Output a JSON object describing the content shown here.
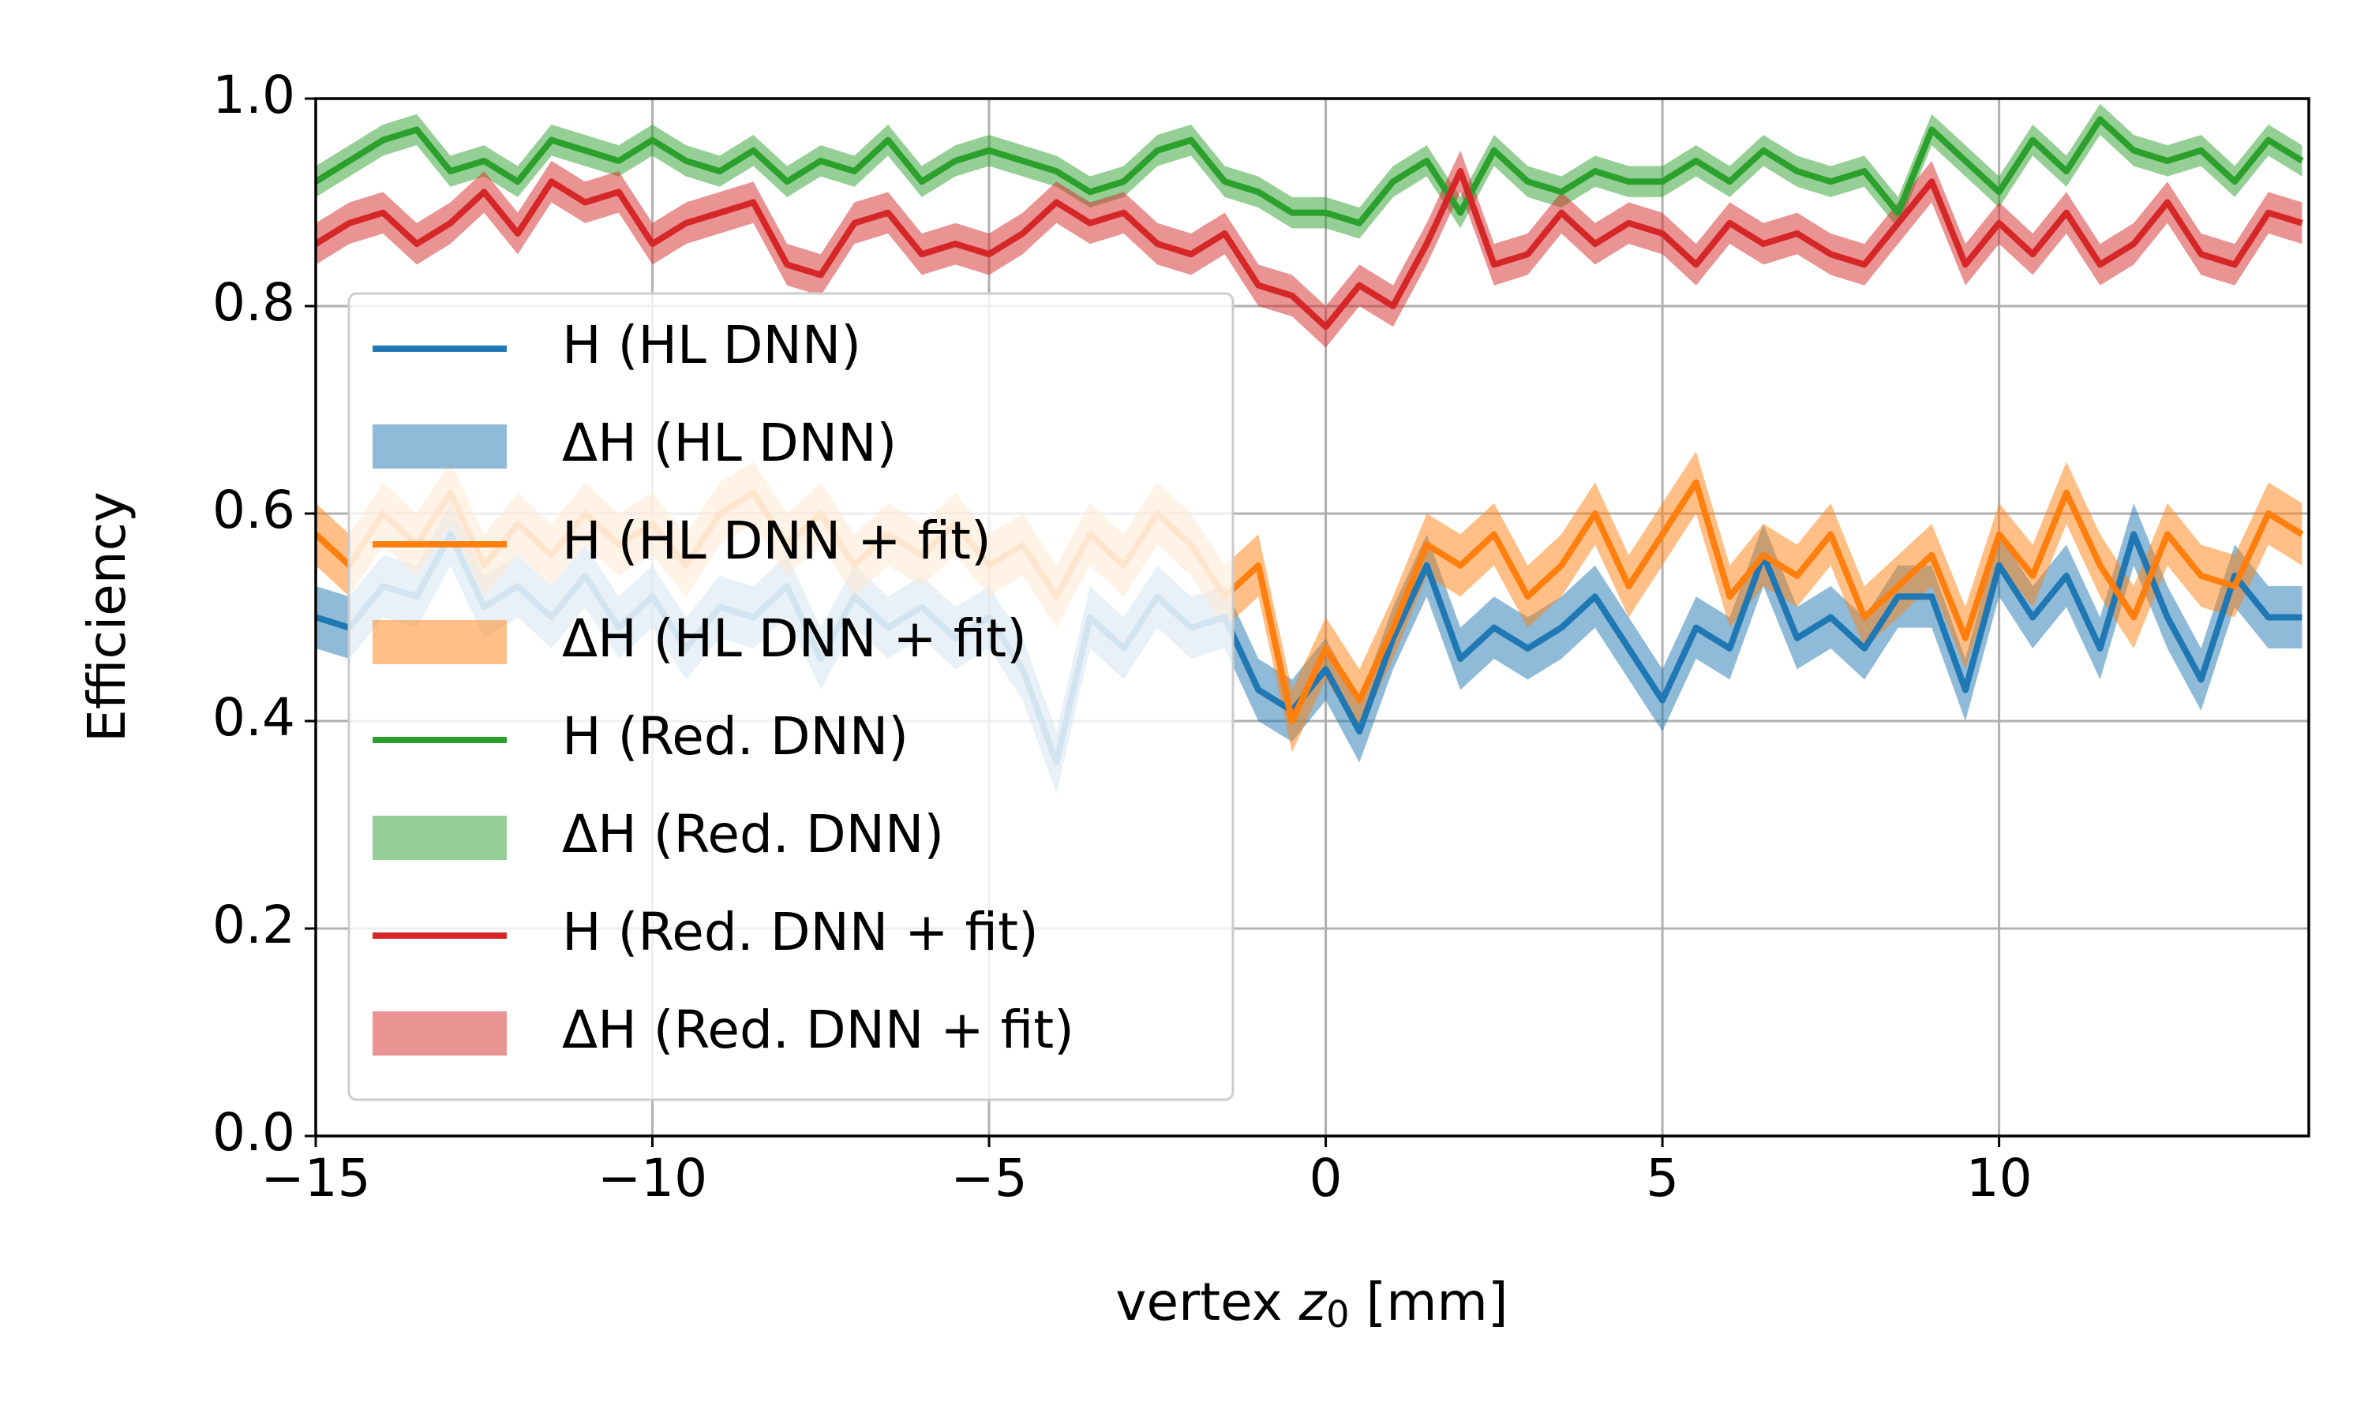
{
  "chart_data": {
    "type": "line",
    "ylabel": "Efficiency",
    "xlabel": {
      "prefix": "vertex ",
      "var": "z",
      "sub": "0",
      "suffix": " [mm]"
    },
    "x": [
      -15,
      -14.5,
      -14,
      -13.5,
      -13,
      -12.5,
      -12,
      -11.5,
      -11,
      -10.5,
      -10,
      -9.5,
      -9,
      -8.5,
      -8,
      -7.5,
      -7,
      -6.5,
      -6,
      -5.5,
      -5,
      -4.5,
      -4,
      -3.5,
      -3,
      -2.5,
      -2,
      -1.5,
      -1,
      -0.5,
      0,
      0.5,
      1,
      1.5,
      2,
      2.5,
      3,
      3.5,
      4,
      4.5,
      5,
      5.5,
      6,
      6.5,
      7,
      7.5,
      8,
      8.5,
      9,
      9.5,
      10,
      10.5,
      11,
      11.5,
      12,
      12.5,
      13,
      13.5,
      14,
      14.5
    ],
    "series": [
      {
        "name": "H (HL DNN)",
        "color": "#1f77b4",
        "band": {
          "name": "ΔH (HL DNN)",
          "error": 0.03
        },
        "values": [
          0.5,
          0.49,
          0.53,
          0.52,
          0.58,
          0.51,
          0.53,
          0.5,
          0.54,
          0.49,
          0.52,
          0.47,
          0.51,
          0.5,
          0.53,
          0.46,
          0.52,
          0.49,
          0.51,
          0.48,
          0.5,
          0.45,
          0.36,
          0.5,
          0.47,
          0.52,
          0.49,
          0.5,
          0.43,
          0.41,
          0.45,
          0.39,
          0.48,
          0.55,
          0.46,
          0.49,
          0.47,
          0.49,
          0.52,
          0.47,
          0.42,
          0.49,
          0.47,
          0.56,
          0.48,
          0.5,
          0.47,
          0.52,
          0.52,
          0.43,
          0.55,
          0.5,
          0.54,
          0.47,
          0.58,
          0.5,
          0.44,
          0.54,
          0.5,
          0.5
        ]
      },
      {
        "name": "H (HL DNN + fit)",
        "color": "#ff7f0e",
        "band": {
          "name": "ΔH (HL DNN + fit)",
          "error": 0.03
        },
        "values": [
          0.58,
          0.55,
          0.6,
          0.57,
          0.62,
          0.55,
          0.59,
          0.56,
          0.6,
          0.57,
          0.59,
          0.55,
          0.6,
          0.62,
          0.57,
          0.6,
          0.55,
          0.58,
          0.56,
          0.59,
          0.55,
          0.57,
          0.52,
          0.58,
          0.55,
          0.6,
          0.57,
          0.52,
          0.55,
          0.4,
          0.47,
          0.42,
          0.49,
          0.57,
          0.55,
          0.58,
          0.52,
          0.55,
          0.6,
          0.53,
          0.58,
          0.63,
          0.52,
          0.56,
          0.54,
          0.58,
          0.5,
          0.53,
          0.56,
          0.48,
          0.58,
          0.54,
          0.62,
          0.55,
          0.5,
          0.58,
          0.54,
          0.53,
          0.6,
          0.58
        ]
      },
      {
        "name": "H (Red. DNN)",
        "color": "#2ca02c",
        "band": {
          "name": "ΔH (Red. DNN)",
          "error": 0.015
        },
        "values": [
          0.92,
          0.94,
          0.96,
          0.97,
          0.93,
          0.94,
          0.92,
          0.96,
          0.95,
          0.94,
          0.96,
          0.94,
          0.93,
          0.95,
          0.92,
          0.94,
          0.93,
          0.96,
          0.92,
          0.94,
          0.95,
          0.94,
          0.93,
          0.91,
          0.92,
          0.95,
          0.96,
          0.92,
          0.91,
          0.89,
          0.89,
          0.88,
          0.92,
          0.94,
          0.89,
          0.95,
          0.92,
          0.91,
          0.93,
          0.92,
          0.92,
          0.94,
          0.92,
          0.95,
          0.93,
          0.92,
          0.93,
          0.89,
          0.97,
          0.94,
          0.91,
          0.96,
          0.93,
          0.98,
          0.95,
          0.94,
          0.95,
          0.92,
          0.96,
          0.94
        ]
      },
      {
        "name": "H (Red. DNN + fit)",
        "color": "#d62728",
        "band": {
          "name": "ΔH (Red. DNN + fit)",
          "error": 0.02
        },
        "values": [
          0.86,
          0.88,
          0.89,
          0.86,
          0.88,
          0.91,
          0.87,
          0.92,
          0.9,
          0.91,
          0.86,
          0.88,
          0.89,
          0.9,
          0.84,
          0.83,
          0.88,
          0.89,
          0.85,
          0.86,
          0.85,
          0.87,
          0.9,
          0.88,
          0.89,
          0.86,
          0.85,
          0.87,
          0.82,
          0.81,
          0.78,
          0.82,
          0.8,
          0.86,
          0.93,
          0.84,
          0.85,
          0.89,
          0.86,
          0.88,
          0.87,
          0.84,
          0.88,
          0.86,
          0.87,
          0.85,
          0.84,
          0.88,
          0.92,
          0.84,
          0.88,
          0.85,
          0.89,
          0.84,
          0.86,
          0.9,
          0.85,
          0.84,
          0.89,
          0.88
        ]
      }
    ],
    "xlim": [
      -15,
      14.6
    ],
    "ylim": [
      0,
      1
    ],
    "xticks": [
      {
        "value": -15,
        "label": "−15"
      },
      {
        "value": -10,
        "label": "−10"
      },
      {
        "value": -5,
        "label": "−5"
      },
      0,
      5,
      10
    ],
    "yticks": [
      {
        "value": 0,
        "label": "0.0"
      },
      0.2,
      0.4,
      0.6,
      0.8,
      {
        "value": 1,
        "label": "1.0"
      }
    ],
    "grid": true,
    "legend": "lower left"
  }
}
